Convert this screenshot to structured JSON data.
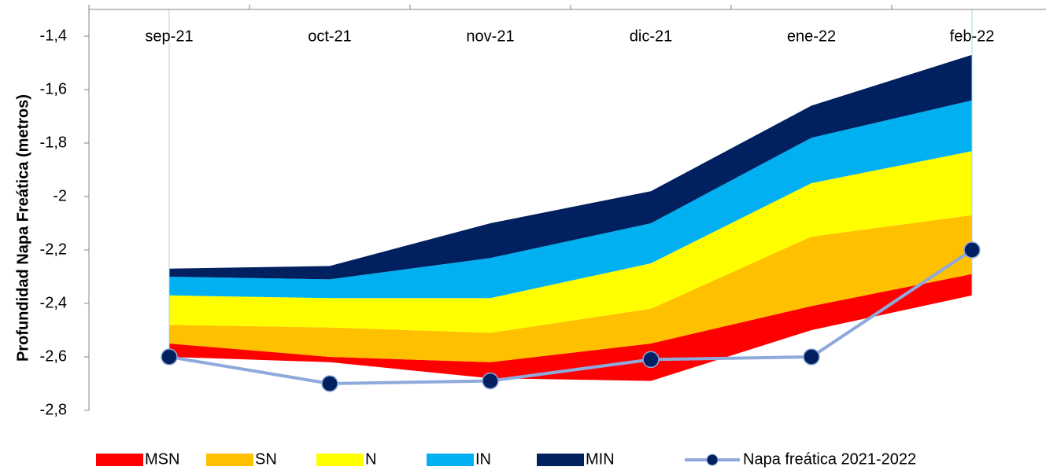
{
  "chart_data": {
    "type": "area",
    "y_label": "Profundidad Napa Freática (metros)",
    "categories": [
      "sep-21",
      "oct-21",
      "nov-21",
      "dic-21",
      "ene-22",
      "feb-22"
    ],
    "ylim": [
      -2.8,
      -1.3
    ],
    "yticks": [
      {
        "value": -1.4,
        "label": "-1,4"
      },
      {
        "value": -1.6,
        "label": "-1,6"
      },
      {
        "value": -1.8,
        "label": "-1,8"
      },
      -2,
      {
        "value": -2.2,
        "label": "-2,2"
      },
      {
        "value": -2.4,
        "label": "-2,4"
      },
      {
        "value": -2.6,
        "label": "-2,6"
      },
      {
        "value": -2.8,
        "label": "-2,8"
      }
    ],
    "series": [
      {
        "name": "MSN",
        "type": "area",
        "color": "#ff0000",
        "low": [
          -2.6,
          -2.62,
          -2.68,
          -2.69,
          -2.5,
          -2.37
        ],
        "high": [
          -2.55,
          -2.6,
          -2.62,
          -2.55,
          -2.41,
          -2.29
        ]
      },
      {
        "name": "SN",
        "type": "area",
        "color": "#ffc000",
        "low": [
          -2.55,
          -2.6,
          -2.62,
          -2.55,
          -2.41,
          -2.29
        ],
        "high": [
          -2.48,
          -2.49,
          -2.51,
          -2.42,
          -2.15,
          -2.07
        ]
      },
      {
        "name": "N",
        "type": "area",
        "color": "#ffff00",
        "low": [
          -2.48,
          -2.49,
          -2.51,
          -2.42,
          -2.15,
          -2.07
        ],
        "high": [
          -2.37,
          -2.38,
          -2.38,
          -2.25,
          -1.95,
          -1.83
        ]
      },
      {
        "name": "IN",
        "type": "area",
        "color": "#00b0f0",
        "low": [
          -2.37,
          -2.38,
          -2.38,
          -2.25,
          -1.95,
          -1.83
        ],
        "high": [
          -2.3,
          -2.31,
          -2.23,
          -2.1,
          -1.78,
          -1.64
        ]
      },
      {
        "name": "MIN",
        "type": "area",
        "color": "#002060",
        "low": [
          -2.3,
          -2.31,
          -2.23,
          -2.1,
          -1.78,
          -1.64
        ],
        "high": [
          -2.27,
          -2.26,
          -2.1,
          -1.98,
          -1.66,
          -1.47
        ]
      },
      {
        "name": "Napa freática 2021-2022",
        "type": "line",
        "color": "#8ea9db",
        "marker_color": "#002060",
        "values": [
          -2.6,
          -2.7,
          -2.69,
          -2.61,
          -2.6,
          -2.2
        ]
      }
    ]
  }
}
